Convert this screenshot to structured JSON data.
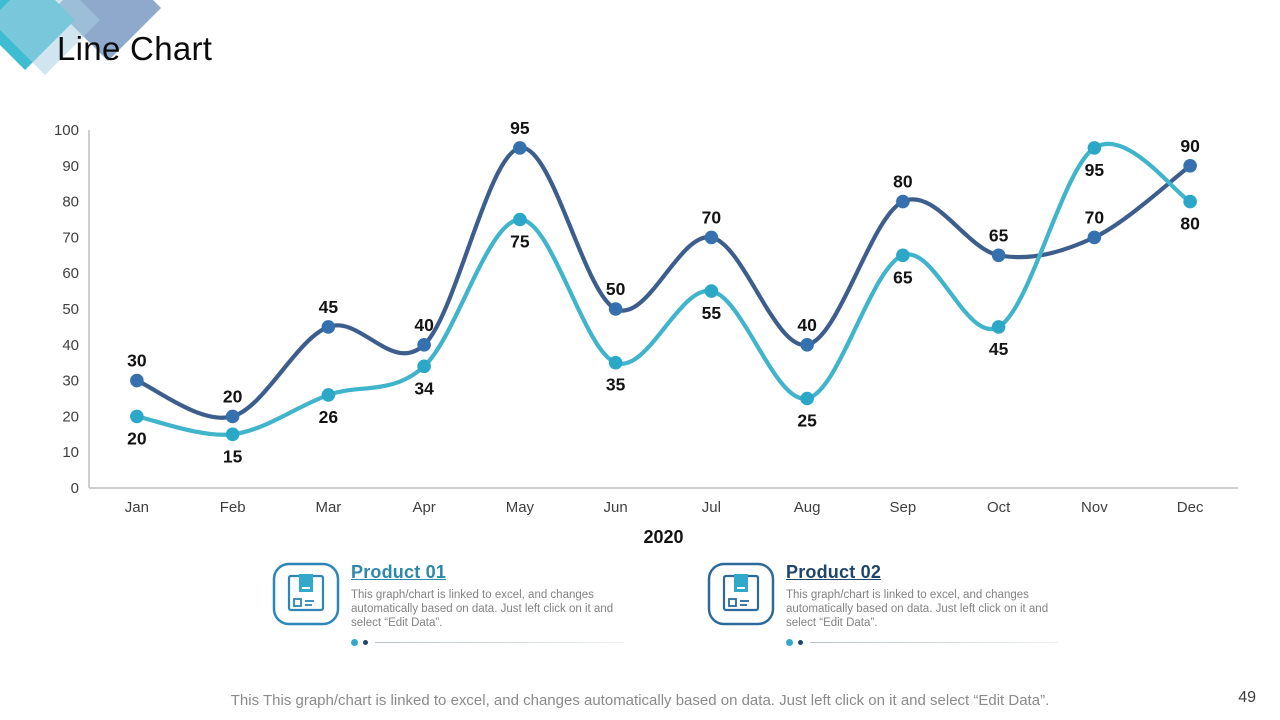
{
  "slide": {
    "title": "Line Chart",
    "footer": "This This graph/chart is linked to excel, and changes automatically based on data. Just left click on it and select “Edit Data”.",
    "page_number": "49"
  },
  "decor": {
    "teal": "#3EBCD2",
    "pale_blue": "#A9CFE2",
    "gray_blue": "#8FA9CC"
  },
  "chart_data": {
    "type": "line",
    "title": "Line Chart",
    "x_axis_label": "2020",
    "categories": [
      "Jan",
      "Feb",
      "Mar",
      "Apr",
      "May",
      "Jun",
      "Jul",
      "Aug",
      "Sep",
      "Oct",
      "Nov",
      "Dec"
    ],
    "y_ticks": [
      0,
      10,
      20,
      30,
      40,
      50,
      60,
      70,
      80,
      90,
      100
    ],
    "ylim": [
      0,
      100
    ],
    "grid": false,
    "smooth": true,
    "legend_position": "none",
    "axis_color": "#bfbfbf",
    "series": [
      {
        "name": "Product 02",
        "color": "#3D5E8D",
        "marker_color": "#3571AE",
        "label_position": "above",
        "values": [
          30,
          20,
          45,
          40,
          95,
          50,
          70,
          40,
          80,
          65,
          70,
          90
        ]
      },
      {
        "name": "Product 01",
        "color": "#3FB4CB",
        "marker_color": "#2BA7C8",
        "label_position": "below",
        "values": [
          20,
          15,
          26,
          34,
          75,
          35,
          55,
          25,
          65,
          45,
          95,
          80
        ]
      }
    ]
  },
  "legend_cards": [
    {
      "icon": "package-box-icon",
      "title": "Product 01",
      "title_color": "#2C88A9",
      "icon_color": "#2C86B8",
      "flap_color": "#32A9CB",
      "description": "This graph/chart is linked to excel, and changes automatically based on data. Just left click on it and select “Edit Data”."
    },
    {
      "icon": "package-box-icon",
      "title": "Product 02",
      "title_color": "#20456A",
      "icon_color": "#2D6A9B",
      "flap_color": "#32A9CB",
      "description": "This graph/chart is linked to excel, and changes automatically based on data. Just left click on it and select “Edit Data”."
    }
  ]
}
